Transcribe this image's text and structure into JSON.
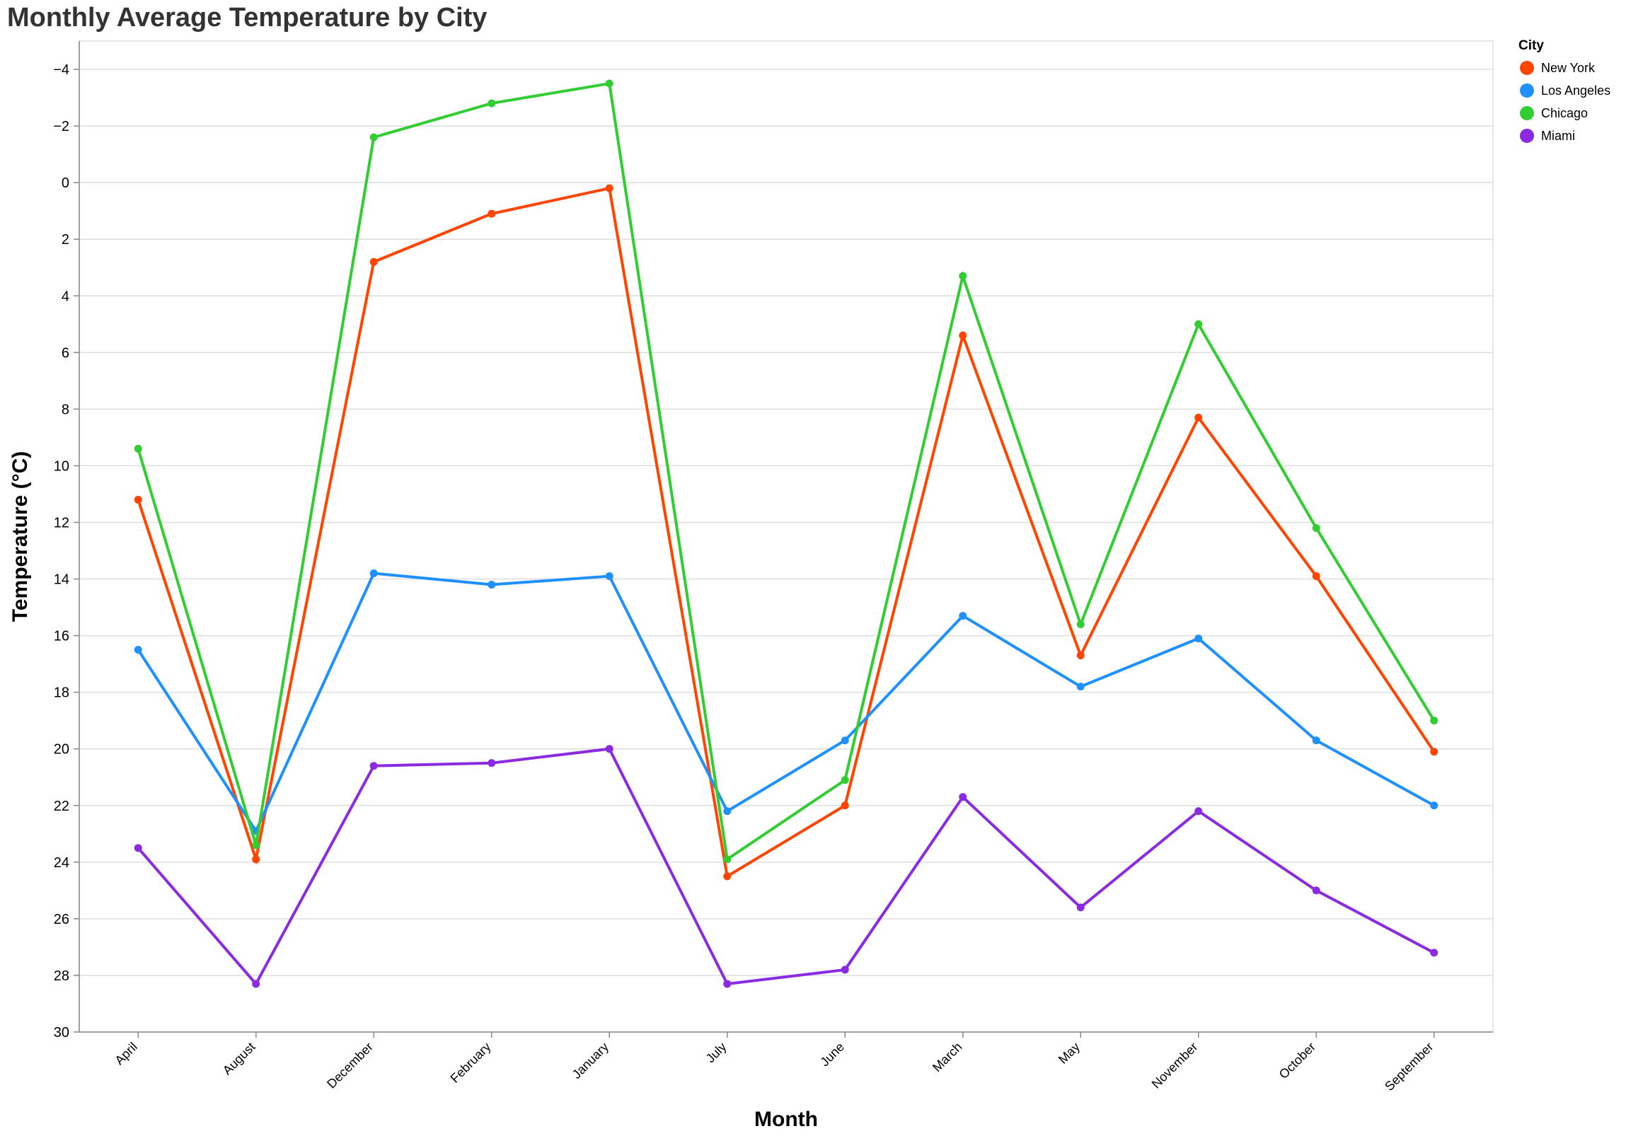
{
  "chart_data": {
    "type": "line",
    "title": "Monthly Average Temperature by City",
    "xlabel": "Month",
    "ylabel": "Temperature (°C)",
    "y_reversed": true,
    "ylim": [
      -5,
      30
    ],
    "yticks": [
      -4,
      -2,
      0,
      2,
      4,
      6,
      8,
      10,
      12,
      14,
      16,
      18,
      20,
      22,
      24,
      26,
      28,
      30
    ],
    "grid": true,
    "legend": {
      "title": "City",
      "position": "top-right"
    },
    "categories": [
      "April",
      "August",
      "December",
      "February",
      "January",
      "July",
      "June",
      "March",
      "May",
      "November",
      "October",
      "September"
    ],
    "series": [
      {
        "name": "New York",
        "color": "#ff4500",
        "values": [
          11.2,
          23.9,
          2.8,
          1.1,
          0.2,
          24.5,
          22.0,
          5.4,
          16.7,
          8.3,
          13.9,
          20.1
        ]
      },
      {
        "name": "Los Angeles",
        "color": "#1e90ff",
        "values": [
          16.5,
          22.9,
          13.8,
          14.2,
          13.9,
          22.2,
          19.7,
          15.3,
          17.8,
          16.1,
          19.7,
          22.0
        ]
      },
      {
        "name": "Chicago",
        "color": "#32cd32",
        "values": [
          9.4,
          23.4,
          -1.6,
          -2.8,
          -3.5,
          23.9,
          21.1,
          3.3,
          15.6,
          5.0,
          12.2,
          19.0
        ]
      },
      {
        "name": "Miami",
        "color": "#8a2be2",
        "values": [
          23.5,
          28.3,
          20.6,
          20.5,
          20.0,
          28.3,
          27.8,
          21.7,
          25.6,
          22.2,
          25.0,
          27.2
        ]
      }
    ]
  }
}
